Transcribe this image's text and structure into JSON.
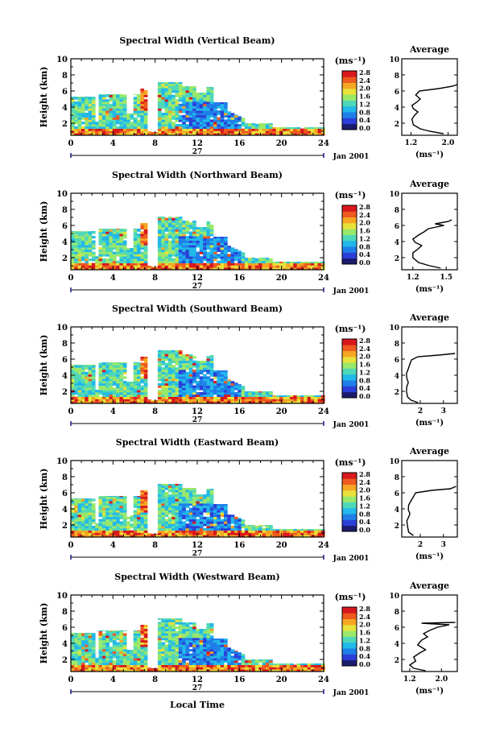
{
  "common": {
    "xlabel": "Local Time",
    "ylabel": "Height (km)",
    "day_label": "27",
    "date_label": "Jan 2001",
    "unit_label": "(ms⁻¹)",
    "avg_title": "Average",
    "avg_unit_label": "(ms⁻¹)",
    "colorbar_ticks": [
      "0.0",
      "0.4",
      "0.8",
      "1.2",
      "1.6",
      "2.0",
      "2.4",
      "2.8"
    ],
    "colorbar_colors": [
      "#1b1b6e",
      "#2b3fd8",
      "#1f7fe8",
      "#22b8ea",
      "#4fd8b8",
      "#9ae86a",
      "#e8e23a",
      "#f5a623",
      "#ee5a1f",
      "#d8181d"
    ]
  },
  "chart_data": [
    {
      "type": "heatmap",
      "title": "Spectral Width (Vertical Beam)",
      "xlabel": "Local Time",
      "ylabel": "Height (km)",
      "x_ticks": [
        0,
        4,
        8,
        12,
        16,
        20,
        24
      ],
      "y_ticks": [
        2,
        4,
        6,
        8,
        10
      ],
      "xlim": [
        0,
        24
      ],
      "ylim": [
        0.5,
        10
      ],
      "colorbar": {
        "label": "(ms⁻¹)",
        "range": [
          0.0,
          2.8
        ],
        "ticks": [
          0.0,
          0.4,
          0.8,
          1.2,
          1.6,
          2.0,
          2.4,
          2.8
        ]
      },
      "note": "Color shading: spectral width vs local time and height",
      "average_profile": {
        "title": "Average",
        "xlabel": "(ms⁻¹)",
        "x_ticks": [
          "1.2",
          "2.0"
        ],
        "xlim": [
          1.0,
          2.2
        ],
        "ylim": [
          0.5,
          10
        ],
        "y_ticks": [
          2,
          4,
          6,
          8,
          10
        ],
        "points": [
          [
            1.9,
            0.7
          ],
          [
            1.6,
            1.0
          ],
          [
            1.4,
            1.3
          ],
          [
            1.25,
            1.8
          ],
          [
            1.22,
            2.5
          ],
          [
            1.28,
            3.0
          ],
          [
            1.35,
            3.4
          ],
          [
            1.25,
            3.8
          ],
          [
            1.22,
            4.2
          ],
          [
            1.32,
            4.6
          ],
          [
            1.4,
            5.0
          ],
          [
            1.3,
            5.5
          ],
          [
            1.38,
            6.0
          ],
          [
            1.8,
            6.3
          ],
          [
            2.1,
            6.6
          ],
          [
            2.2,
            6.8
          ]
        ]
      }
    },
    {
      "type": "heatmap",
      "title": "Spectral Width (Northward Beam)",
      "xlabel": "Local Time",
      "ylabel": "Height (km)",
      "x_ticks": [
        0,
        4,
        8,
        12,
        16,
        20,
        24
      ],
      "y_ticks": [
        2,
        4,
        6,
        8,
        10
      ],
      "xlim": [
        0,
        24
      ],
      "ylim": [
        0.5,
        10
      ],
      "colorbar": {
        "label": "(ms⁻¹)",
        "range": [
          0.0,
          2.8
        ],
        "ticks": [
          0.0,
          0.4,
          0.8,
          1.2,
          1.6,
          2.0,
          2.4,
          2.8
        ]
      },
      "average_profile": {
        "title": "Average",
        "xlabel": "(ms⁻¹)",
        "x_ticks": [
          "1.2",
          "1.5"
        ],
        "xlim": [
          1.1,
          1.6
        ],
        "ylim": [
          0.5,
          10
        ],
        "y_ticks": [
          2,
          4,
          6,
          8,
          10
        ],
        "points": [
          [
            1.45,
            0.7
          ],
          [
            1.35,
            1.0
          ],
          [
            1.25,
            1.4
          ],
          [
            1.2,
            2.0
          ],
          [
            1.2,
            2.6
          ],
          [
            1.24,
            3.0
          ],
          [
            1.28,
            3.5
          ],
          [
            1.22,
            3.9
          ],
          [
            1.2,
            4.3
          ],
          [
            1.25,
            4.8
          ],
          [
            1.3,
            5.2
          ],
          [
            1.34,
            5.6
          ],
          [
            1.48,
            6.0
          ],
          [
            1.4,
            6.2
          ],
          [
            1.52,
            6.5
          ],
          [
            1.55,
            6.7
          ]
        ]
      }
    },
    {
      "type": "heatmap",
      "title": "Spectral Width (Southward Beam)",
      "xlabel": "Local Time",
      "ylabel": "Height (km)",
      "x_ticks": [
        0,
        4,
        8,
        12,
        16,
        20,
        24
      ],
      "y_ticks": [
        2,
        4,
        6,
        8,
        10
      ],
      "xlim": [
        0,
        24
      ],
      "ylim": [
        0.5,
        10
      ],
      "colorbar": {
        "label": "(ms⁻¹)",
        "range": [
          0.0,
          2.8
        ],
        "ticks": [
          0.0,
          0.4,
          0.8,
          1.2,
          1.6,
          2.0,
          2.4,
          2.8
        ]
      },
      "average_profile": {
        "title": "Average",
        "xlabel": "(ms⁻¹)",
        "x_ticks": [
          "2",
          "3"
        ],
        "xlim": [
          1.2,
          3.6
        ],
        "ylim": [
          0.5,
          10
        ],
        "y_ticks": [
          2,
          4,
          6,
          8,
          10
        ],
        "points": [
          [
            1.9,
            0.6
          ],
          [
            1.6,
            0.9
          ],
          [
            1.45,
            1.3
          ],
          [
            1.4,
            2.0
          ],
          [
            1.42,
            2.6
          ],
          [
            1.48,
            3.1
          ],
          [
            1.42,
            3.6
          ],
          [
            1.4,
            4.2
          ],
          [
            1.48,
            4.8
          ],
          [
            1.55,
            5.4
          ],
          [
            1.62,
            5.9
          ],
          [
            1.9,
            6.3
          ],
          [
            2.8,
            6.5
          ],
          [
            3.5,
            6.7
          ]
        ]
      }
    },
    {
      "type": "heatmap",
      "title": "Spectral Width (Eastward Beam)",
      "xlabel": "Local Time",
      "ylabel": "Height (km)",
      "x_ticks": [
        0,
        4,
        8,
        12,
        16,
        20,
        24
      ],
      "y_ticks": [
        2,
        4,
        6,
        8,
        10
      ],
      "xlim": [
        0,
        24
      ],
      "ylim": [
        0.5,
        10
      ],
      "colorbar": {
        "label": "(ms⁻¹)",
        "range": [
          0.0,
          2.8
        ],
        "ticks": [
          0.0,
          0.4,
          0.8,
          1.2,
          1.6,
          2.0,
          2.4,
          2.8
        ]
      },
      "average_profile": {
        "title": "Average",
        "xlabel": "(ms⁻¹)",
        "x_ticks": [
          "2",
          "3"
        ],
        "xlim": [
          1.2,
          3.6
        ],
        "ylim": [
          0.5,
          10
        ],
        "y_ticks": [
          2,
          4,
          6,
          8,
          10
        ],
        "points": [
          [
            1.7,
            0.7
          ],
          [
            1.5,
            1.1
          ],
          [
            1.45,
            1.8
          ],
          [
            1.42,
            2.5
          ],
          [
            1.5,
            3.0
          ],
          [
            1.55,
            3.4
          ],
          [
            1.48,
            3.9
          ],
          [
            1.5,
            4.5
          ],
          [
            1.6,
            5.0
          ],
          [
            1.7,
            5.5
          ],
          [
            1.8,
            6.0
          ],
          [
            2.5,
            6.3
          ],
          [
            3.3,
            6.5
          ],
          [
            3.55,
            6.8
          ]
        ]
      }
    },
    {
      "type": "heatmap",
      "title": "Spectral Width (Westward Beam)",
      "xlabel": "Local Time",
      "ylabel": "Height (km)",
      "x_ticks": [
        0,
        4,
        8,
        12,
        16,
        20,
        24
      ],
      "y_ticks": [
        2,
        4,
        6,
        8,
        10
      ],
      "xlim": [
        0,
        24
      ],
      "ylim": [
        0.5,
        10
      ],
      "colorbar": {
        "label": "(ms⁻¹)",
        "range": [
          0.0,
          2.8
        ],
        "ticks": [
          0.0,
          0.4,
          0.8,
          1.2,
          1.6,
          2.0,
          2.4,
          2.8
        ]
      },
      "average_profile": {
        "title": "Average",
        "xlabel": "(ms⁻¹)",
        "x_ticks": [
          "1.2",
          "2.0"
        ],
        "xlim": [
          1.0,
          2.4
        ],
        "ylim": [
          0.5,
          10
        ],
        "y_ticks": [
          2,
          4,
          6,
          8,
          10
        ],
        "points": [
          [
            1.6,
            0.6
          ],
          [
            1.3,
            0.9
          ],
          [
            1.2,
            1.3
          ],
          [
            1.35,
            1.8
          ],
          [
            1.3,
            2.3
          ],
          [
            1.45,
            2.8
          ],
          [
            1.6,
            3.2
          ],
          [
            1.4,
            3.8
          ],
          [
            1.5,
            4.4
          ],
          [
            1.65,
            4.8
          ],
          [
            1.55,
            5.2
          ],
          [
            1.7,
            5.6
          ],
          [
            1.9,
            6.0
          ],
          [
            2.2,
            6.3
          ],
          [
            1.5,
            6.5
          ],
          [
            2.35,
            6.6
          ]
        ]
      }
    }
  ]
}
